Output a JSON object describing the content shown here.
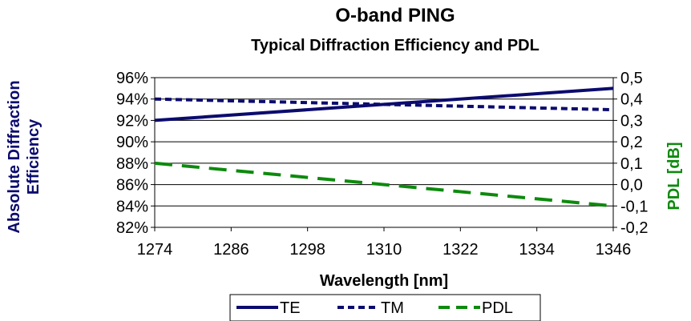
{
  "chart_data": {
    "type": "line",
    "title": "O-band PING",
    "subtitle": "Typical Diffraction Efficiency and PDL",
    "xlabel": "Wavelength [nm]",
    "ylabel_left_line1": "Absolute Diffraction",
    "ylabel_left_line2": "Efficiency",
    "ylabel_right": "PDL [dB]",
    "x": [
      1274,
      1346
    ],
    "xticks": [
      "1274",
      "1286",
      "1298",
      "1310",
      "1322",
      "1334",
      "1346"
    ],
    "xlim": [
      1274,
      1346
    ],
    "y_left_ticks": [
      "96%",
      "94%",
      "92%",
      "90%",
      "88%",
      "86%",
      "84%",
      "82%"
    ],
    "y_left_lim": [
      82,
      96
    ],
    "y_right_ticks": [
      "0,5",
      "0,4",
      "0,3",
      "0,2",
      "0,1",
      "0,0",
      "-0,1",
      "-0,2"
    ],
    "y_right_lim": [
      -0.2,
      0.5
    ],
    "series": [
      {
        "name": "TE",
        "axis": "left",
        "values": [
          92,
          95
        ],
        "color": "#0b0b6e",
        "dash": "solid"
      },
      {
        "name": "TM",
        "axis": "left",
        "values": [
          94,
          93
        ],
        "color": "#0b0b6e",
        "dash": "short"
      },
      {
        "name": "PDL",
        "axis": "right",
        "values": [
          0.1,
          -0.1
        ],
        "color": "#0d8a0d",
        "dash": "long"
      }
    ],
    "left_label_color": "#0b0b6e",
    "right_label_color": "#0d8a0d",
    "grid": "horizontal",
    "legend_position": "bottom"
  }
}
